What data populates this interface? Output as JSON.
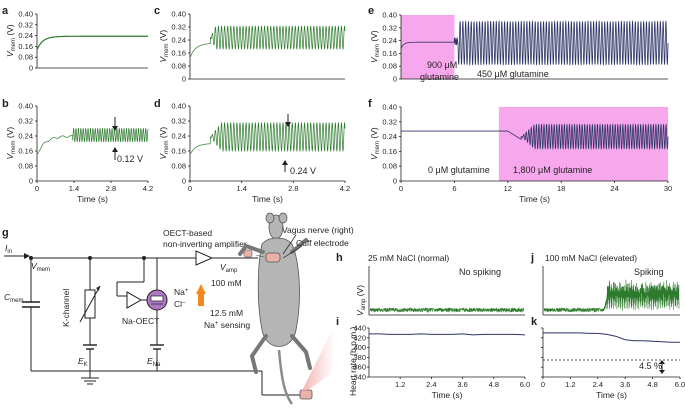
{
  "panels": [
    {
      "id": "a",
      "label": "a",
      "type": "line",
      "ylabel_main": "V",
      "ylabel_sub": "mem",
      "yunit": "(V)",
      "yticks": [
        "0.40",
        "0.32",
        "0.24",
        "0.16",
        "0.08",
        "0"
      ],
      "xticks": [],
      "xlabel": "",
      "ylim": [
        0,
        0.4
      ],
      "xlim": [
        0,
        4.2
      ],
      "color": "#2d7a2d"
    },
    {
      "id": "b",
      "label": "b",
      "type": "line",
      "ylabel_main": "V",
      "ylabel_sub": "mem",
      "yunit": "(V)",
      "yticks": [
        "0.40",
        "0.32",
        "0.24",
        "0.16",
        "0.08",
        "0"
      ],
      "xticks": [
        "0",
        "1.4",
        "2.8",
        "4.2"
      ],
      "xlabel": "Time (s)",
      "ylim": [
        0,
        0.4
      ],
      "xlim": [
        0,
        4.2
      ],
      "annotation": "0.12 V",
      "color": "#2d7a2d"
    },
    {
      "id": "c",
      "label": "c",
      "type": "line",
      "ylabel_main": "V",
      "ylabel_sub": "mem",
      "yunit": "(V)",
      "yticks": [
        "0.40",
        "0.32",
        "0.24",
        "0.16",
        "0.08",
        "0"
      ],
      "xticks": [],
      "xlabel": "",
      "ylim": [
        0,
        0.4
      ],
      "xlim": [
        0,
        4.2
      ],
      "color": "#2d7a2d"
    },
    {
      "id": "d",
      "label": "d",
      "type": "line",
      "ylabel_main": "V",
      "ylabel_sub": "mem",
      "yunit": "(V)",
      "yticks": [
        "0.40",
        "0.32",
        "0.24",
        "0.16",
        "0.08",
        "0"
      ],
      "xticks": [
        "0",
        "1.4",
        "2.8",
        "4.2"
      ],
      "xlabel": "Time (s)",
      "ylim": [
        0,
        0.4
      ],
      "xlim": [
        0,
        4.2
      ],
      "annotation": "0.24 V",
      "color": "#2d7a2d"
    },
    {
      "id": "e",
      "label": "e",
      "type": "line",
      "ylabel_main": "V",
      "ylabel_sub": "mem",
      "yunit": "(V)",
      "yticks": [
        "0.40",
        "0.32",
        "0.24",
        "0.16",
        "0.08",
        "0"
      ],
      "xticks": [],
      "xlabel": "",
      "ylim": [
        0,
        0.4
      ],
      "xlim": [
        0,
        30
      ],
      "shade_start": 0,
      "shade_end": 6,
      "shade_label_1": "900 μM",
      "shade_label_2": "glutamine",
      "other_label": "450 μM glutamine",
      "color": "#2e3566"
    },
    {
      "id": "f",
      "label": "f",
      "type": "line",
      "ylabel_main": "V",
      "ylabel_sub": "mem",
      "yunit": "(V)",
      "yticks": [
        "0.40",
        "0.32",
        "0.24",
        "0.16",
        "0.08",
        "0"
      ],
      "xticks": [
        "0",
        "6",
        "12",
        "18",
        "24",
        "30"
      ],
      "xlabel": "Time (s)",
      "ylim": [
        0,
        0.4
      ],
      "xlim": [
        0,
        30
      ],
      "shade_start": 11,
      "shade_end": 30,
      "shade_label_1": "1,800 μM glutamine",
      "other_label": "0 μM glutamine",
      "color": "#2e3566"
    }
  ],
  "circuit": {
    "label": "g",
    "i_in": "I",
    "i_in_sub": "in",
    "v_mem": "V",
    "v_mem_sub": "mem",
    "c_mem": "C",
    "c_mem_sub": "mem",
    "k_channel": "K-channel",
    "e_k": "E",
    "e_k_sub": "K",
    "e_na": "E",
    "e_na_sub": "Na",
    "na_oect": "Na-OECT",
    "na_plus": "Na",
    "cl_minus": "Cl",
    "high_conc": "100 mM",
    "low_conc": "12.5 mM",
    "na_sensing": "Na",
    "na_sensing_suffix": " sensing",
    "amp_title_1": "OECT-based",
    "amp_title_2": "non-inverting amplifier",
    "v_amp": "V",
    "v_amp_sub": "amp",
    "vagus": "Vagus nerve (right)",
    "cuff": "Cuff electrode"
  },
  "recordings": {
    "h": {
      "label": "h",
      "title": "25 mM NaCl (normal)",
      "note": "No spiking",
      "ylabel": "V",
      "ylabel_sub": "amp",
      "yunit": "(V)"
    },
    "i": {
      "label": "i",
      "ylabel": "Heart rate (b.p.m.)",
      "yticks": [
        "440",
        "420",
        "400",
        "380",
        "360",
        "340"
      ],
      "xticks": [
        "1.2",
        "2.4",
        "3.6",
        "4.8",
        "6.0"
      ],
      "xlabel": "Time (s)",
      "ylim": [
        340,
        440
      ],
      "xlim": [
        0,
        6.0
      ],
      "hr": [
        428,
        428,
        427,
        427,
        427,
        428,
        427,
        427,
        427,
        428,
        426,
        427,
        427,
        427,
        427,
        426
      ]
    },
    "j": {
      "label": "j",
      "title": "100 mM NaCl (elevated)",
      "note": "Spiking"
    },
    "k": {
      "label": "k",
      "xticks": [
        "0",
        "1.2",
        "2.4",
        "3.6",
        "4.8",
        "6.0"
      ],
      "xlabel": "Time (s)",
      "ylim": [
        340,
        440
      ],
      "xlim": [
        0,
        6.0
      ],
      "annotation": "4.5 %",
      "hr": [
        [
          0,
          430
        ],
        [
          0.4,
          430
        ],
        [
          0.8,
          430
        ],
        [
          1.2,
          430
        ],
        [
          1.6,
          430
        ],
        [
          2.0,
          429
        ],
        [
          2.4,
          429
        ],
        [
          2.8,
          427
        ],
        [
          3.2,
          423
        ],
        [
          3.6,
          416
        ],
        [
          4.0,
          414
        ],
        [
          4.4,
          414
        ],
        [
          4.8,
          413
        ],
        [
          5.2,
          412
        ],
        [
          5.6,
          411
        ],
        [
          6.0,
          411
        ]
      ]
    }
  }
}
